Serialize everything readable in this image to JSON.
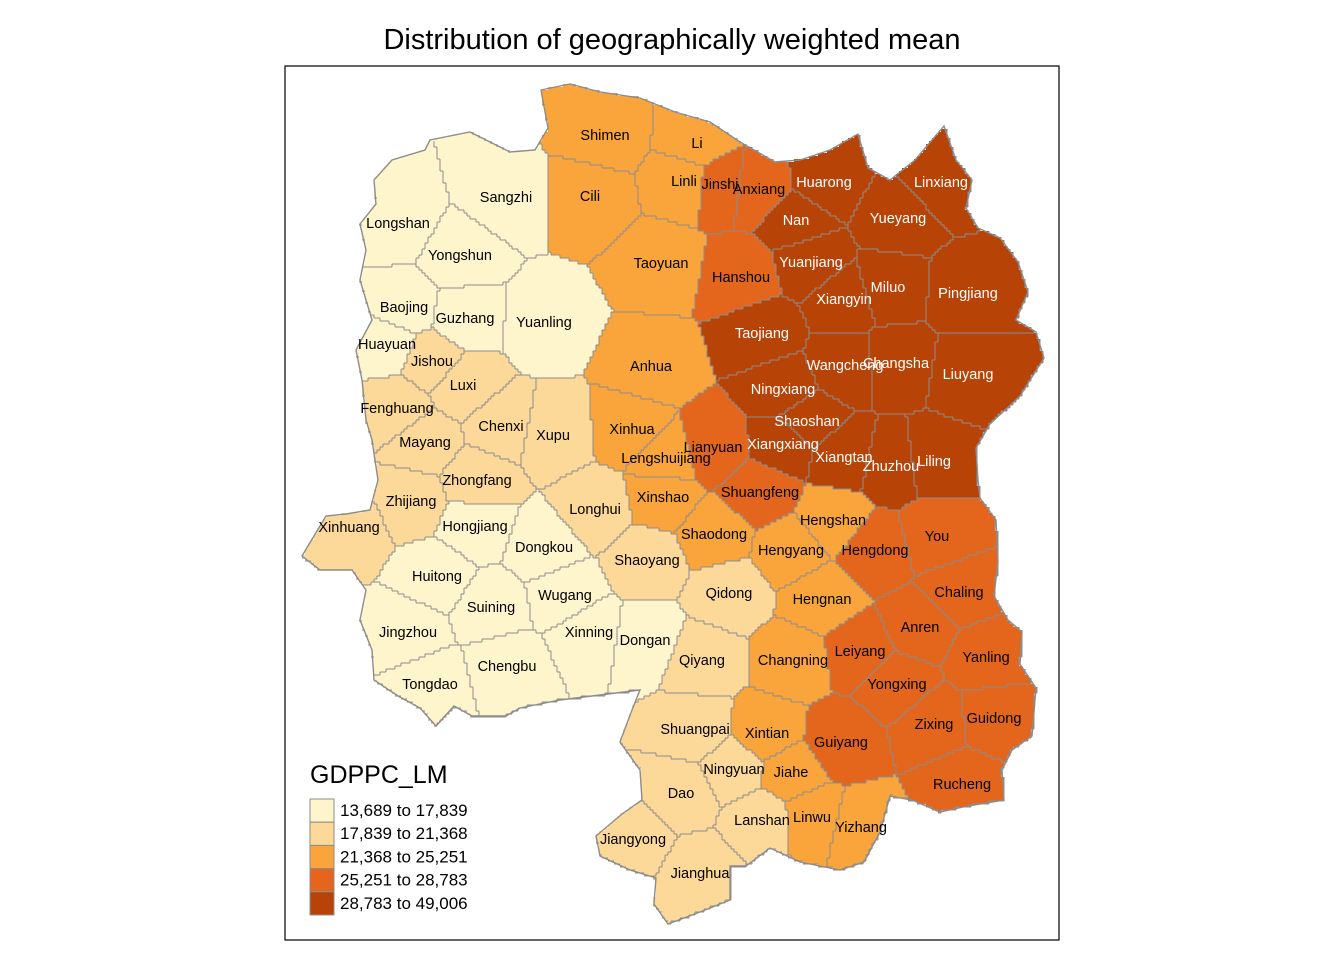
{
  "title": "Distribution of geographically weighted mean",
  "legend": {
    "title": "GDPPC_LM",
    "classes": [
      {
        "label": "13,689 to 17,839",
        "color": "#fff5cc"
      },
      {
        "label": "17,839 to 21,368",
        "color": "#fdd999"
      },
      {
        "label": "21,368 to 25,251",
        "color": "#faa53c"
      },
      {
        "label": "25,251 to 28,783",
        "color": "#e4661d"
      },
      {
        "label": "28,783 to 49,006",
        "color": "#b84306"
      }
    ]
  },
  "counties": [
    {
      "name": "Shimen",
      "cls": 2
    },
    {
      "name": "Li",
      "cls": 2
    },
    {
      "name": "Cili",
      "cls": 2
    },
    {
      "name": "Linli",
      "cls": 2
    },
    {
      "name": "Jinshi",
      "cls": 3
    },
    {
      "name": "Anxiang",
      "cls": 3
    },
    {
      "name": "Huarong",
      "cls": 4
    },
    {
      "name": "Linxiang",
      "cls": 4
    },
    {
      "name": "Sangzhi",
      "cls": 0
    },
    {
      "name": "Nan",
      "cls": 4
    },
    {
      "name": "Yueyang",
      "cls": 4
    },
    {
      "name": "Longshan",
      "cls": 0
    },
    {
      "name": "Yongshun",
      "cls": 0
    },
    {
      "name": "Taoyuan",
      "cls": 2
    },
    {
      "name": "Hanshou",
      "cls": 3
    },
    {
      "name": "Yuanjiang",
      "cls": 4
    },
    {
      "name": "Miluo",
      "cls": 4
    },
    {
      "name": "Pingjiang",
      "cls": 4
    },
    {
      "name": "Xiangyin",
      "cls": 4
    },
    {
      "name": "Baojing",
      "cls": 0
    },
    {
      "name": "Guzhang",
      "cls": 0
    },
    {
      "name": "Yuanling",
      "cls": 0
    },
    {
      "name": "Taojiang",
      "cls": 4
    },
    {
      "name": "Huayuan",
      "cls": 0
    },
    {
      "name": "Jishou",
      "cls": 1
    },
    {
      "name": "Anhua",
      "cls": 2
    },
    {
      "name": "Wangcheng",
      "cls": 4
    },
    {
      "name": "Changsha",
      "cls": 4
    },
    {
      "name": "Liuyang",
      "cls": 4
    },
    {
      "name": "Luxi",
      "cls": 1
    },
    {
      "name": "Ningxiang",
      "cls": 4
    },
    {
      "name": "Fenghuang",
      "cls": 1
    },
    {
      "name": "Shaoshan",
      "cls": 4
    },
    {
      "name": "Chenxi",
      "cls": 1
    },
    {
      "name": "Xinhua",
      "cls": 2
    },
    {
      "name": "Xupu",
      "cls": 1
    },
    {
      "name": "Mayang",
      "cls": 1
    },
    {
      "name": "Lianyuan",
      "cls": 3
    },
    {
      "name": "Xiangxiang",
      "cls": 4
    },
    {
      "name": "Lengshuijiang",
      "cls": 2
    },
    {
      "name": "Xiangtan",
      "cls": 4
    },
    {
      "name": "Zhuzhou",
      "cls": 4
    },
    {
      "name": "Liling",
      "cls": 4
    },
    {
      "name": "Zhongfang",
      "cls": 1
    },
    {
      "name": "Shuangfeng",
      "cls": 3
    },
    {
      "name": "Xinshao",
      "cls": 2
    },
    {
      "name": "Zhijiang",
      "cls": 1
    },
    {
      "name": "Longhui",
      "cls": 1
    },
    {
      "name": "Hengshan",
      "cls": 2
    },
    {
      "name": "Xinhuang",
      "cls": 1
    },
    {
      "name": "Hongjiang",
      "cls": 0
    },
    {
      "name": "Shaodong",
      "cls": 2
    },
    {
      "name": "You",
      "cls": 3
    },
    {
      "name": "Dongkou",
      "cls": 0
    },
    {
      "name": "Hengyang",
      "cls": 2
    },
    {
      "name": "Hengdong",
      "cls": 3
    },
    {
      "name": "Shaoyang",
      "cls": 1
    },
    {
      "name": "Huitong",
      "cls": 0
    },
    {
      "name": "Chaling",
      "cls": 3
    },
    {
      "name": "Qidong",
      "cls": 1
    },
    {
      "name": "Wugang",
      "cls": 0
    },
    {
      "name": "Hengnan",
      "cls": 2
    },
    {
      "name": "Suining",
      "cls": 0
    },
    {
      "name": "Anren",
      "cls": 3
    },
    {
      "name": "Jingzhou",
      "cls": 0
    },
    {
      "name": "Xinning",
      "cls": 0
    },
    {
      "name": "Dongan",
      "cls": 0
    },
    {
      "name": "Leiyang",
      "cls": 3
    },
    {
      "name": "Qiyang",
      "cls": 1
    },
    {
      "name": "Changning",
      "cls": 2
    },
    {
      "name": "Yanling",
      "cls": 3
    },
    {
      "name": "Chengbu",
      "cls": 0
    },
    {
      "name": "Yongxing",
      "cls": 3
    },
    {
      "name": "Tongdao",
      "cls": 0
    },
    {
      "name": "Guidong",
      "cls": 3
    },
    {
      "name": "Zixing",
      "cls": 3
    },
    {
      "name": "Shuangpai",
      "cls": 1
    },
    {
      "name": "Xintian",
      "cls": 2
    },
    {
      "name": "Guiyang",
      "cls": 3
    },
    {
      "name": "Ningyuan",
      "cls": 1
    },
    {
      "name": "Jiahe",
      "cls": 2
    },
    {
      "name": "Rucheng",
      "cls": 3
    },
    {
      "name": "Dao",
      "cls": 1
    },
    {
      "name": "Lanshan",
      "cls": 1
    },
    {
      "name": "Linwu",
      "cls": 2
    },
    {
      "name": "Yizhang",
      "cls": 2
    },
    {
      "name": "Jiangyong",
      "cls": 1
    },
    {
      "name": "Jianghua",
      "cls": 1
    }
  ]
}
